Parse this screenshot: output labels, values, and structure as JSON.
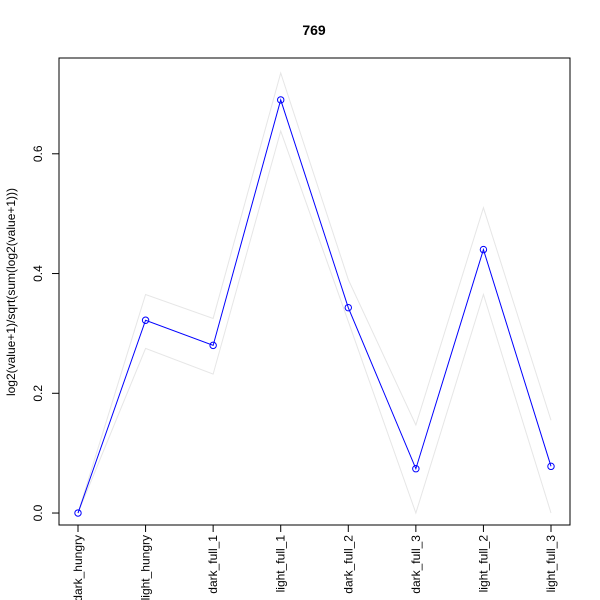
{
  "chart_data": {
    "type": "line",
    "title": "769",
    "xlabel": "",
    "ylabel": "log2(value+1)/sqrt(sum(log2(value+1)))",
    "categories": [
      "dark_hungry",
      "light_hungry",
      "dark_full_1",
      "light_full_1",
      "dark_full_2",
      "dark_full_3",
      "light_full_2",
      "light_full_3"
    ],
    "ylim": [
      -0.02,
      0.76
    ],
    "yticks": [
      0.0,
      0.2,
      0.4,
      0.6
    ],
    "ytick_labels": [
      "0.0",
      "0.2",
      "0.4",
      "0.6"
    ],
    "grid": false,
    "series": [
      {
        "role": "main",
        "color": "#0000ff",
        "markers": "open-circle",
        "values": [
          0.0,
          0.322,
          0.28,
          0.69,
          0.343,
          0.074,
          0.44,
          0.078
        ]
      },
      {
        "role": "upper-band",
        "color": "#e6e6e6",
        "values": [
          0.0,
          0.365,
          0.325,
          0.735,
          0.39,
          0.147,
          0.51,
          0.155
        ]
      },
      {
        "role": "lower-band",
        "color": "#e6e6e6",
        "values": [
          0.0,
          0.275,
          0.232,
          0.638,
          0.32,
          0.0,
          0.365,
          0.0
        ]
      }
    ]
  }
}
